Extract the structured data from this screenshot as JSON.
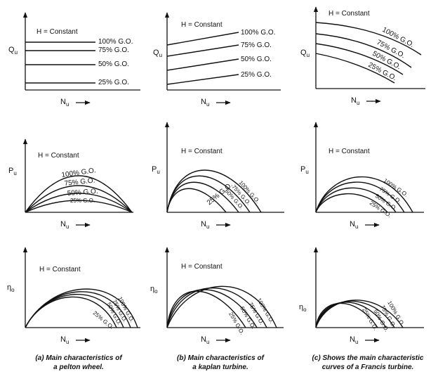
{
  "h_constant": "H = Constant",
  "axis_symbols": {
    "discharge": "Q",
    "discharge_sub": "u",
    "power": "P",
    "power_sub": "u",
    "efficiency": "η",
    "efficiency_sub": "o",
    "speed": "N",
    "speed_sub": "u"
  },
  "gate_openings": {
    "g100": "100% G.O.",
    "g75": "75% G.O.",
    "g50": "50% G.O.",
    "g25": "25% G.O."
  },
  "captions": {
    "pelton_line1": "(a) Main characteristics of",
    "pelton_line2": "a pelton wheel.",
    "kaplan_line1": "(b) Main characteristics of",
    "kaplan_line2": "a kaplan turbine.",
    "francis_line1": "(c) Shows the main characteristic",
    "francis_line2": "curves of a Francis turbine."
  },
  "colors": {
    "ink": "#111111",
    "background": "#ffffff"
  }
}
